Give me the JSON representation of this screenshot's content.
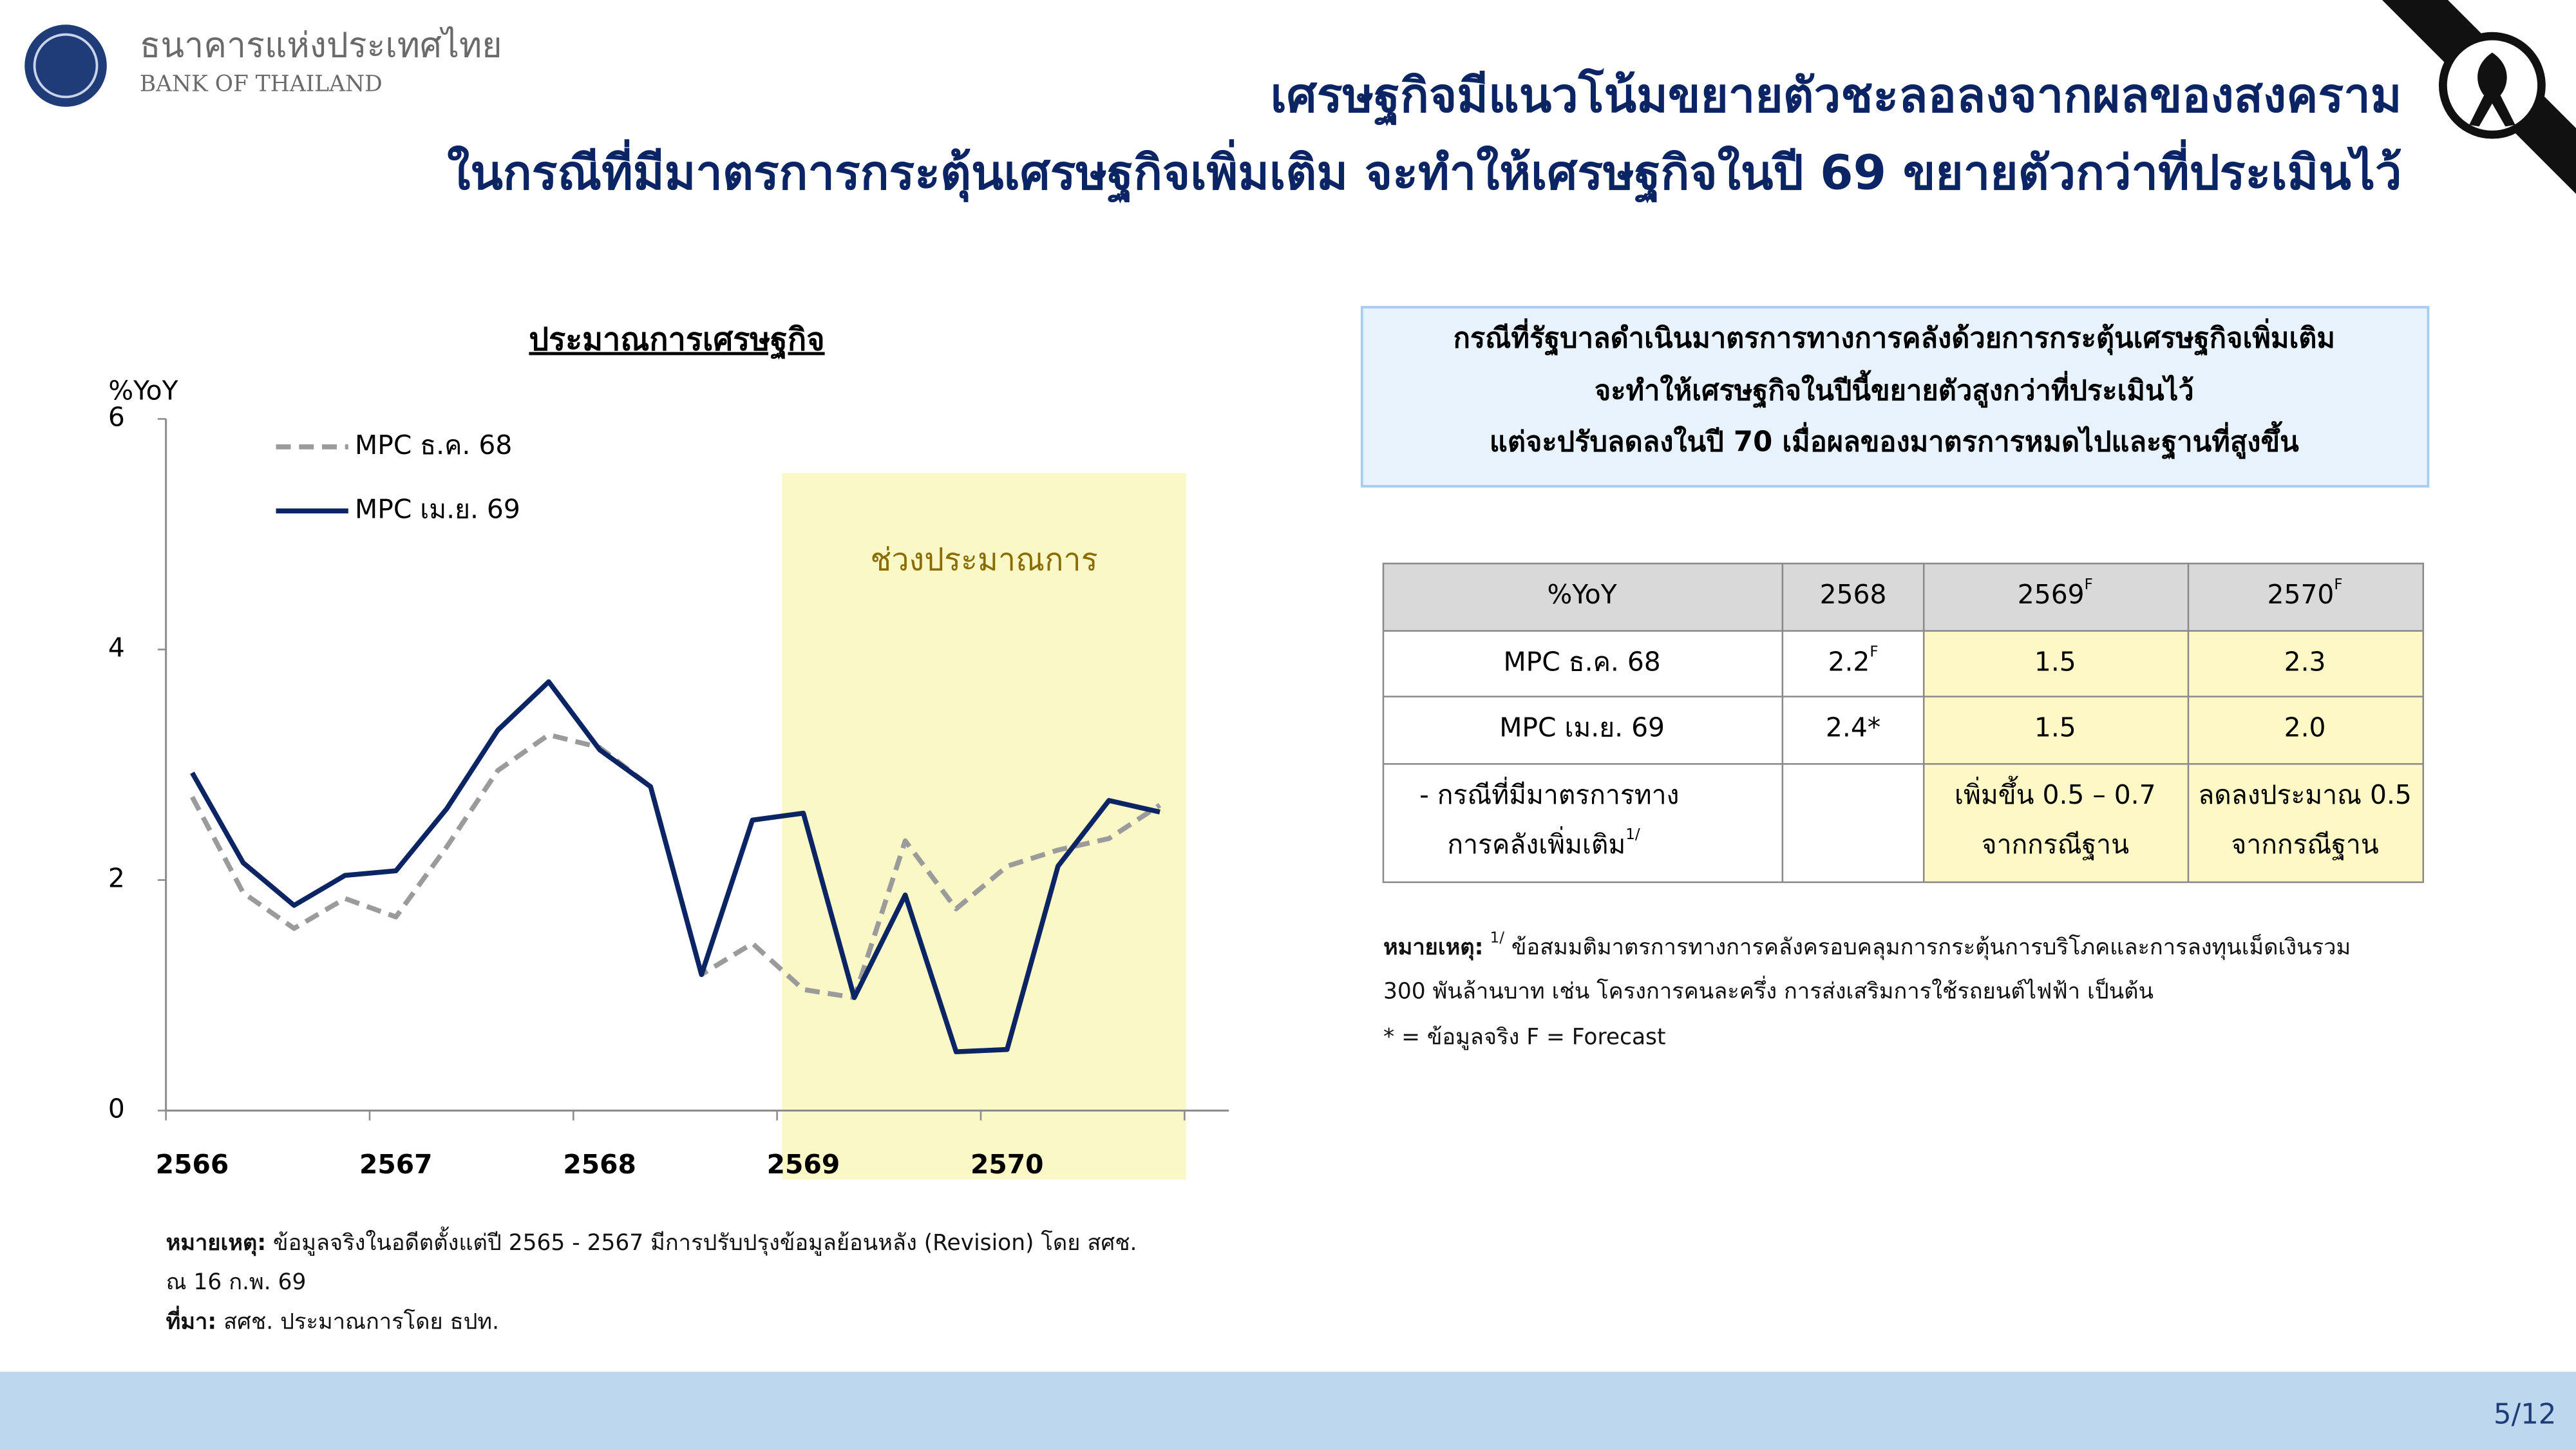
{
  "header": {
    "org_th": "ธนาคารแห่งประเทศไทย",
    "org_en": "BANK OF THAILAND",
    "title_lines": [
      "เศรษฐกิจมีแนวโน้มขยายตัวชะลอลงจากผลของสงคราม",
      "ในกรณีที่มีมาตรการกระตุ้นเศรษฐกิจเพิ่มเติม จะทำให้เศรษฐกิจในปี 69 ขยายตัวกว่าที่ประเมินไว้"
    ]
  },
  "chart_data": {
    "type": "line",
    "title": "ประมาณการเศรษฐกิจ",
    "y_label": "%YoY",
    "annotation": "ช่วงประมาณการ",
    "categories": [
      "2566",
      null,
      null,
      null,
      "2567",
      null,
      null,
      null,
      "2568",
      null,
      null,
      null,
      "2569",
      null,
      null,
      null,
      "2570",
      null,
      null,
      null
    ],
    "series": [
      {
        "name": "MPC ธ.ค. 68",
        "color": "#9b9b9b",
        "dashed": true,
        "values": [
          2.72,
          1.89,
          1.58,
          1.84,
          1.68,
          2.29,
          2.95,
          3.26,
          3.15,
          2.81,
          1.18,
          1.45,
          1.05,
          0.98,
          2.34,
          1.75,
          2.12,
          2.26,
          2.36,
          2.65
        ]
      },
      {
        "name": "MPC เม.ย. 69",
        "color": "#0b2463",
        "dashed": false,
        "values": [
          2.93,
          2.15,
          1.78,
          2.04,
          2.08,
          2.62,
          3.3,
          3.72,
          3.13,
          2.81,
          1.18,
          2.52,
          2.58,
          0.98,
          1.87,
          0.51,
          0.53,
          2.12,
          2.69,
          2.59
        ]
      }
    ],
    "ylim": [
      0,
      6
    ],
    "yticks": [
      0,
      2,
      4,
      6
    ],
    "legend": "upper-left"
  },
  "chart_notes": [
    {
      "label": "หมายเหตุ:",
      "text": " ข้อมูลจริงในอดีตตั้งแต่ปี 2565 - 2567 มีการปรับปรุงข้อมูลย้อนหลัง (Revision) โดย สศช."
    },
    {
      "text": "ณ 16 ก.พ. 69"
    },
    {
      "label": "ที่มา:",
      "text": " สศช. ประมาณการโดย ธปท."
    }
  ],
  "info_box": [
    "กรณีที่รัฐบาลดำเนินมาตรการทางการคลังด้วยการกระตุ้นเศรษฐกิจเพิ่มเติม",
    "จะทำให้เศรษฐกิจในปีนี้ขยายตัวสูงกว่าที่ประเมินไว้",
    "แต่จะปรับลดลงในปี 70 เมื่อผลของมาตรการหมดไปและฐานที่สูงขึ้น"
  ],
  "table": {
    "header": [
      "%YoY",
      "2568",
      {
        "text": "2569",
        "sup": "F"
      },
      {
        "text": "2570",
        "sup": "F"
      }
    ],
    "rows": [
      [
        "MPC ธ.ค. 68",
        {
          "text": "2.2",
          "sup": "F"
        },
        "1.5",
        "2.3"
      ],
      [
        "MPC เม.ย. 69",
        "2.4*",
        "1.5",
        "2.0"
      ],
      [
        {
          "lines": [
            "-  กรณีที่มีมาตรการทาง",
            "การคลังเพิ่มเติม"
          ],
          "sup": "1/"
        },
        null,
        {
          "lines": [
            "เพิ่มขึ้น 0.5 – 0.7",
            "จากกรณีฐาน"
          ]
        },
        {
          "lines": [
            "ลดลงประมาณ 0.5",
            "จากกรณีฐาน"
          ]
        }
      ]
    ]
  },
  "table_notes": [
    {
      "label": "หมายเหตุ:",
      "sup": "1/",
      "text": " ข้อสมมติมาตรการทางการคลังครอบคลุมการกระตุ้นการบริโภคและการลงทุนเม็ดเงินรวม"
    },
    {
      "text": "300 พันล้านบาท เช่น โครงการคนละครึ่ง การส่งเสริมการใช้รถยนต์ไฟฟ้า เป็นต้น"
    },
    {
      "text": "* = ข้อมูลจริง F = Forecast"
    }
  ],
  "page_number": "5/12"
}
